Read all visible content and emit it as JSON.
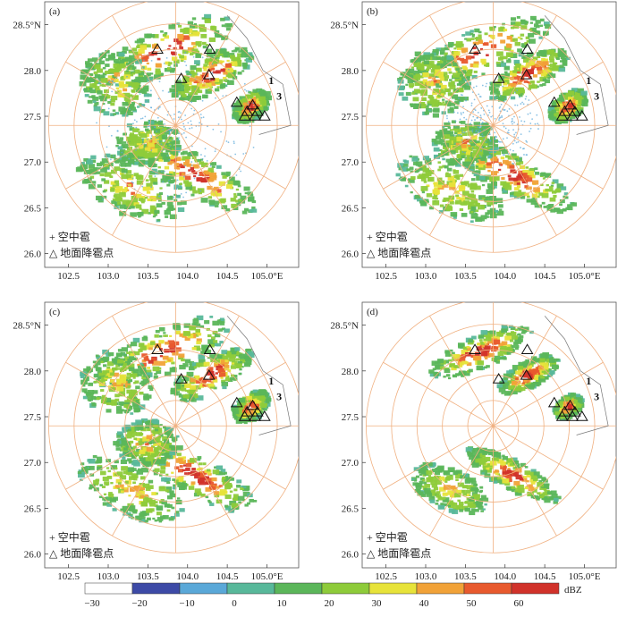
{
  "chart_data": {
    "type": "heatmap",
    "panels": [
      {
        "label": "(a)"
      },
      {
        "label": "(b)"
      },
      {
        "label": "(c)"
      },
      {
        "label": "(d)"
      }
    ],
    "x_ticks": [
      "102.5",
      "103.0",
      "103.5",
      "104.0",
      "104.5",
      "105.0°E"
    ],
    "y_ticks": [
      "28.5°N",
      "28.0",
      "27.5",
      "27.0",
      "26.5",
      "26.0"
    ],
    "x_tick_values": [
      102.5,
      103.0,
      103.5,
      104.0,
      104.5,
      105.0
    ],
    "y_tick_values": [
      28.5,
      28.0,
      27.5,
      27.0,
      26.5,
      26.0
    ],
    "xlim": [
      102.2,
      105.4
    ],
    "ylim": [
      25.85,
      28.75
    ],
    "radar_center": [
      103.85,
      27.4
    ],
    "legend": {
      "items": [
        {
          "symbol": "+",
          "text": "空中雹"
        },
        {
          "symbol": "△",
          "text": "地面降雹点"
        }
      ]
    },
    "ground_hail_points": [
      [
        103.62,
        28.23
      ],
      [
        104.28,
        28.23
      ],
      [
        103.92,
        27.91
      ],
      [
        104.27,
        27.95
      ],
      [
        104.62,
        27.65
      ],
      [
        104.75,
        27.55
      ],
      [
        104.82,
        27.62
      ],
      [
        104.88,
        27.55
      ],
      [
        104.97,
        27.5
      ],
      [
        104.72,
        27.5
      ],
      [
        104.85,
        27.5
      ]
    ],
    "point_labels": [
      {
        "text": "1",
        "x": 105.02,
        "y": 27.85
      },
      {
        "text": "3",
        "x": 105.12,
        "y": 27.68
      }
    ],
    "colorbar": {
      "unit": "dBZ",
      "ticks": [
        -30,
        -20,
        -10,
        0,
        10,
        20,
        30,
        40,
        50,
        60
      ],
      "colors": {
        "-30": "#ffffff",
        "-20": "#3d4aa6",
        "-10": "#5aa8d8",
        "0": "#58b89a",
        "10": "#5bb65a",
        "20": "#8ecb3a",
        "30": "#e7e33a",
        "40": "#f1a238",
        "50": "#e85a2e",
        "60": "#d1322a"
      }
    }
  },
  "colors": {
    "range_rings": "#f0b080",
    "frame": "#555555"
  }
}
